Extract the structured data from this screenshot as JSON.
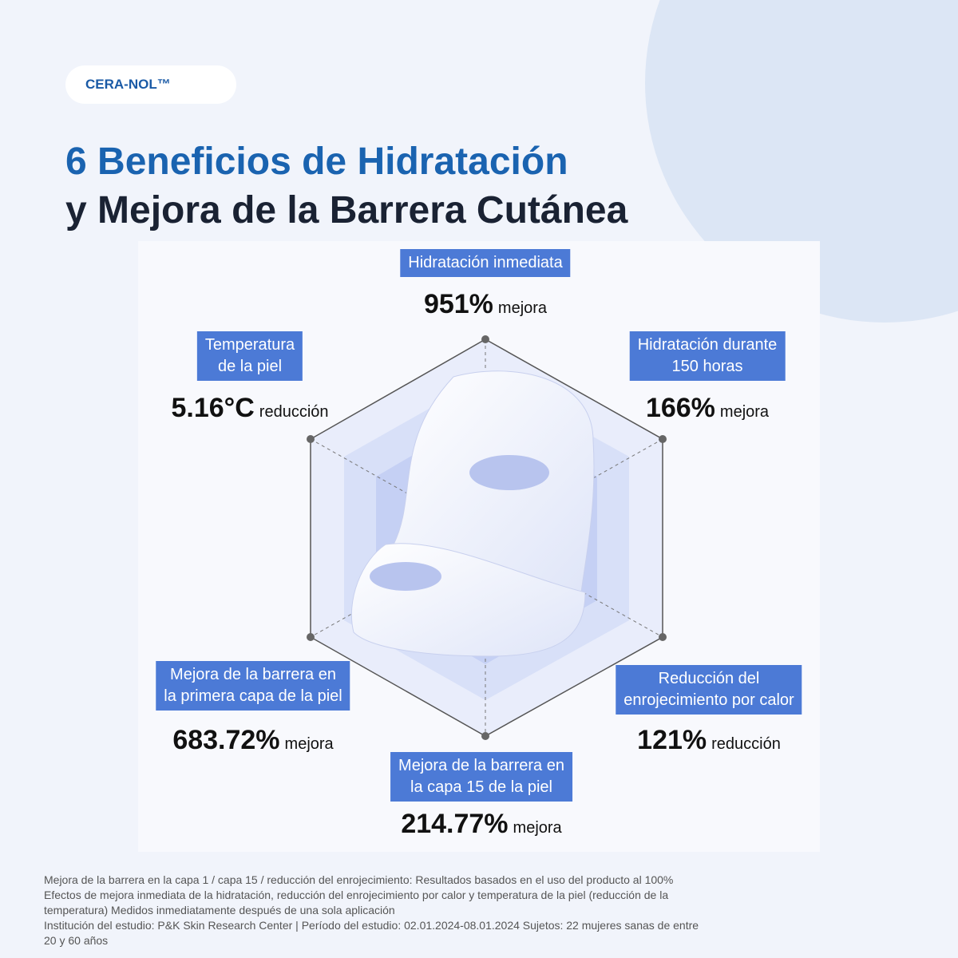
{
  "badge": "CERA-NOL™",
  "title": {
    "line1": "6 Beneficios de Hidratación",
    "line2": "y Mejora de la Barrera Cutánea"
  },
  "benefits": [
    {
      "label": [
        "Hidratación inmediata"
      ],
      "value": "951%",
      "unit": "mejora"
    },
    {
      "label": [
        "Hidratación durante",
        "150 horas"
      ],
      "value": "166%",
      "unit": "mejora"
    },
    {
      "label": [
        "Reducción del",
        "enrojecimiento por calor"
      ],
      "value": "121%",
      "unit": "reducción"
    },
    {
      "label": [
        "Mejora de la barrera en",
        "la capa 15 de la piel"
      ],
      "value": "214.77%",
      "unit": "mejora"
    },
    {
      "label": [
        "Mejora de la barrera en",
        "la primera capa de la piel"
      ],
      "value": "683.72%",
      "unit": "mejora"
    },
    {
      "label": [
        "Temperatura",
        "de la piel"
      ],
      "value": "5.16°C",
      "unit": "reducción"
    }
  ],
  "footnotes": [
    "Mejora de la barrera en la capa 1 / capa 15 / reducción del enrojecimiento: Resultados basados en el uso del producto al 100%",
    "Efectos de mejora inmediata de la hidratación, reducción del enrojecimiento por calor y temperatura de la piel (reducción de la",
    "temperatura) Medidos inmediatamente después de una sola aplicación",
    "Institución del estudio: P&K Skin Research Center | Período del estudio: 02.01.2024-08.01.2024 Sujetos: 22 mujeres sanas de entre",
    "20 y 60 años"
  ]
}
